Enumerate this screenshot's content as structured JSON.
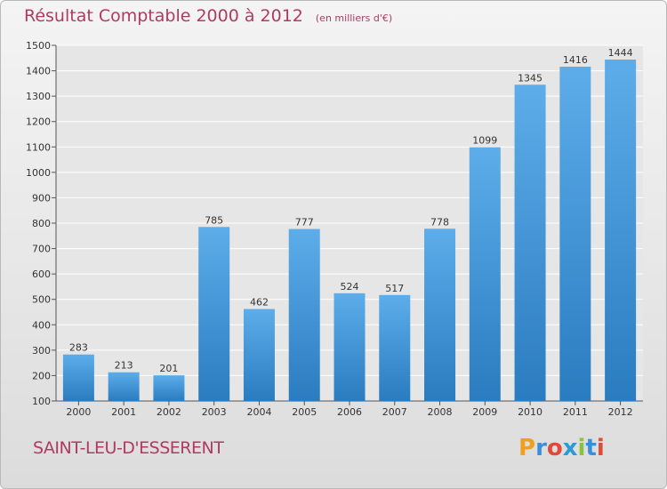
{
  "header": {
    "title": "Résultat Comptable 2000 à 2012",
    "subtitle": "(en milliers d'€)"
  },
  "footer": {
    "place": "SAINT-LEU-D'ESSERENT",
    "logo": "Proxiti"
  },
  "colors": {
    "accent": "#b03a63",
    "bar_top": "#5dadea",
    "bar_bottom": "#2a7cc0",
    "logo_letters": [
      "#f0a020",
      "#3a8fd8",
      "#e04a3a",
      "#2a9ad8",
      "#8cc040",
      "#3a8fd8",
      "#e04a3a"
    ]
  },
  "chart_data": {
    "type": "bar",
    "categories": [
      "2000",
      "2001",
      "2002",
      "2003",
      "2004",
      "2005",
      "2006",
      "2007",
      "2008",
      "2009",
      "2010",
      "2011",
      "2012"
    ],
    "values": [
      283,
      213,
      201,
      785,
      462,
      777,
      524,
      517,
      778,
      1099,
      1345,
      1416,
      1444
    ],
    "title": "Résultat Comptable 2000 à 2012",
    "subtitle": "(en milliers d'€)",
    "ylim": [
      100,
      1500
    ],
    "yticks": [
      100,
      200,
      300,
      400,
      500,
      600,
      700,
      800,
      900,
      1000,
      1100,
      1200,
      1300,
      1400,
      1500
    ],
    "grid": true,
    "legend": "none"
  }
}
